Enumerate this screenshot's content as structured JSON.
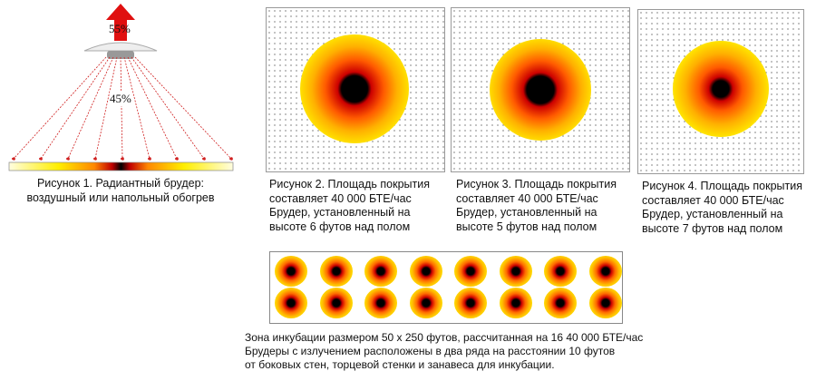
{
  "figure1": {
    "up_percent": "55%",
    "down_percent": "45%",
    "caption": "Рисунок 1. Радиантный брудер:\nвоздушный или напольный обогрев"
  },
  "figure2": {
    "caption": "Рисунок 2. Площадь покрытия\nсоставляет 40 000 БТЕ/час\nБрудер, установленный на\nвысоте  6 футов над полом"
  },
  "figure3": {
    "caption": "Рисунок 3. Площадь покрытия\nсоставляет 40 000 БТЕ/час\nБрудер, установленный на\nвысоте 5 футов над полом"
  },
  "figure4": {
    "caption": "Рисунок 4. Площадь покрытия\nсоставляет 40 000 БТЕ/час\nБрудер, установленный на\nвысоте 7 футов над полом"
  },
  "layout_figure": {
    "rows": 2,
    "per_row": 8,
    "caption": "Зона инкубации размером 50 х 250 футов, рассчитанная на 16 40 000 БТЕ/час\nБрудеры с излучением расположены в два ряда на расстоянии 10 футов\nот боковых стен, торцевой стенки и занавеса для инкубации."
  },
  "colors": {
    "arrow": "#e01010",
    "ray": "#d02020",
    "hot": "#000000",
    "mid": "#e8200a",
    "warm": "#ff9900",
    "cool": "#ffee00"
  }
}
